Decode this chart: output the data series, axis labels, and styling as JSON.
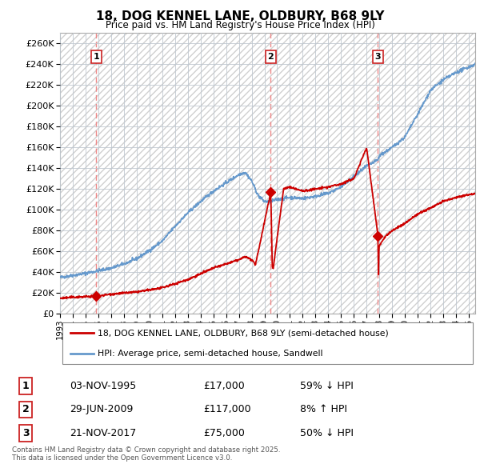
{
  "title": "18, DOG KENNEL LANE, OLDBURY, B68 9LY",
  "subtitle": "Price paid vs. HM Land Registry's House Price Index (HPI)",
  "property_label": "18, DOG KENNEL LANE, OLDBURY, B68 9LY (semi-detached house)",
  "hpi_label": "HPI: Average price, semi-detached house, Sandwell",
  "sales": [
    {
      "num": 1,
      "date": "03-NOV-1995",
      "price": 17000,
      "pct": "59% ↓ HPI",
      "year": 1995.84
    },
    {
      "num": 2,
      "date": "29-JUN-2009",
      "price": 117000,
      "pct": "8% ↑ HPI",
      "year": 2009.49
    },
    {
      "num": 3,
      "date": "21-NOV-2017",
      "price": 75000,
      "pct": "50% ↓ HPI",
      "year": 2017.89
    }
  ],
  "property_color": "#cc0000",
  "hpi_color": "#6699cc",
  "vline_color": "#ee8888",
  "ylim": [
    0,
    270000
  ],
  "ytick_step": 20000,
  "xlim_start": 1993.0,
  "xlim_end": 2025.5,
  "footer": "Contains HM Land Registry data © Crown copyright and database right 2025.\nThis data is licensed under the Open Government Licence v3.0."
}
